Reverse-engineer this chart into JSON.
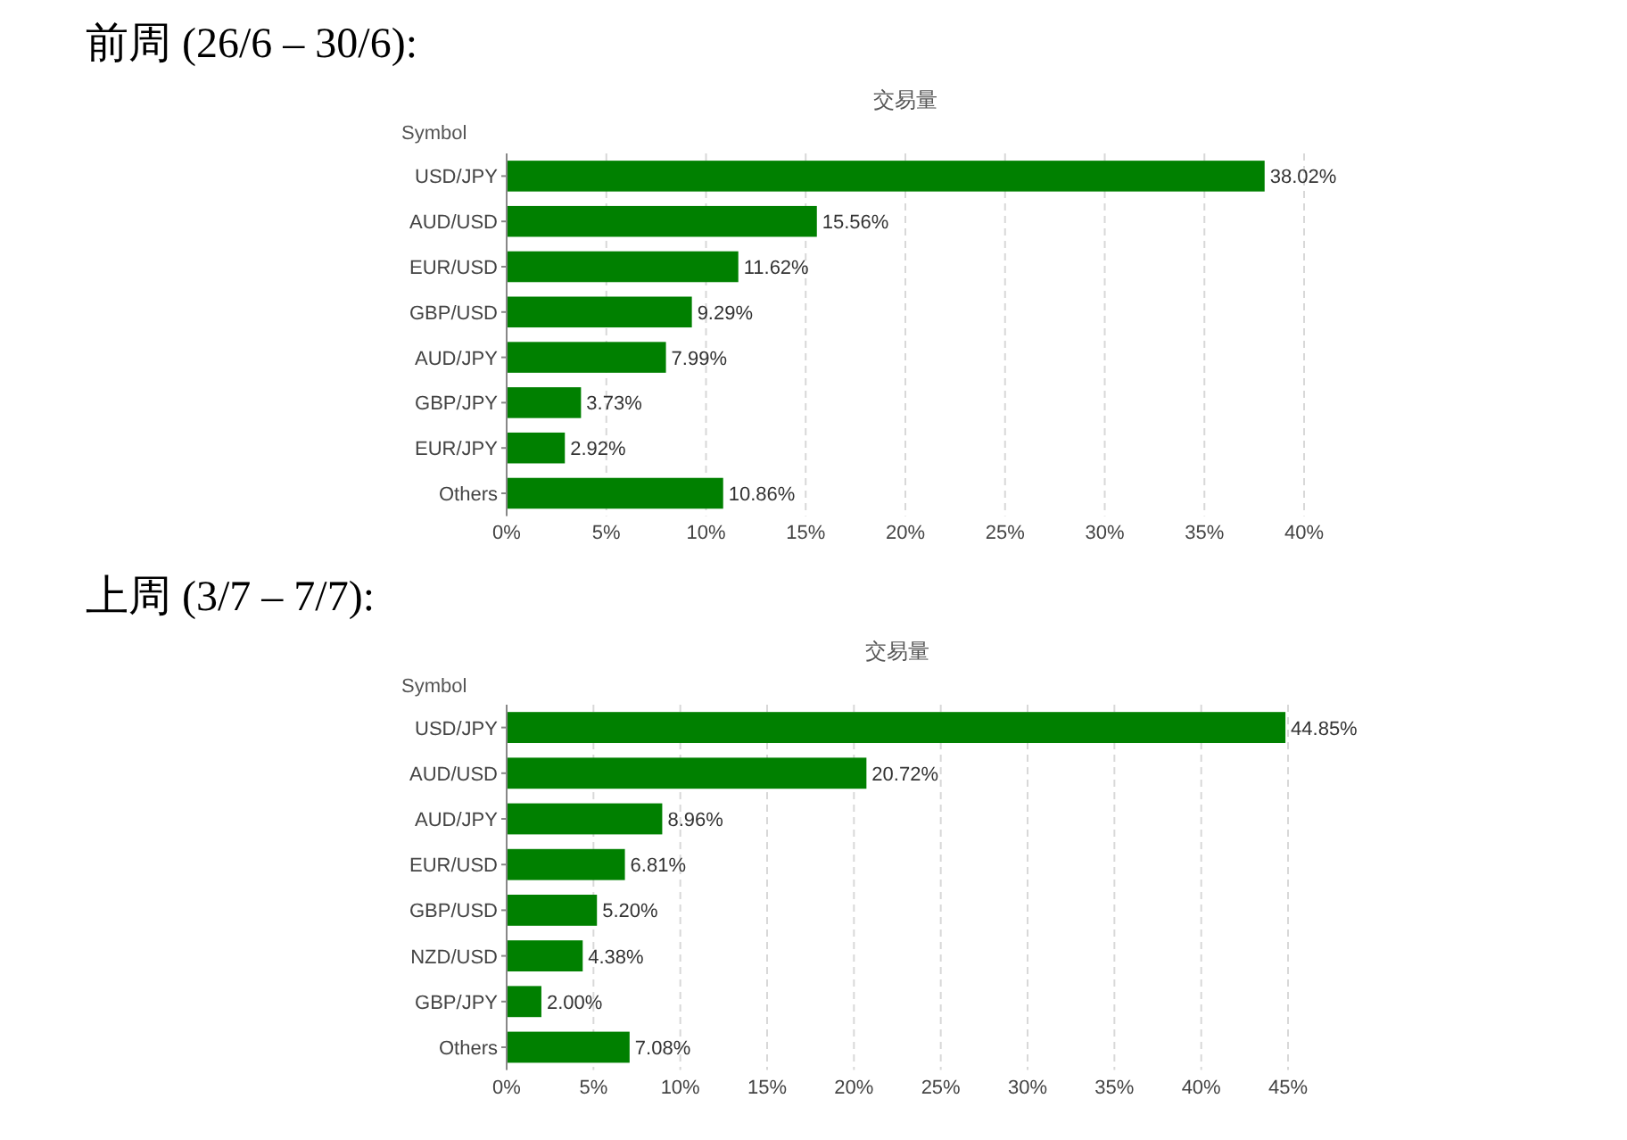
{
  "chart_data": [
    {
      "type": "bar",
      "orientation": "horizontal",
      "title": "前周 (26/6 – 30/6):",
      "subtitle": "交易量",
      "ylabel": "Symbol",
      "categories": [
        "USD/JPY",
        "AUD/USD",
        "EUR/USD",
        "GBP/USD",
        "AUD/JPY",
        "GBP/JPY",
        "EUR/JPY",
        "Others"
      ],
      "values": [
        38.02,
        15.56,
        11.62,
        9.29,
        7.99,
        3.73,
        2.92,
        10.86
      ],
      "value_labels": [
        "38.02%",
        "15.56%",
        "11.62%",
        "9.29%",
        "7.99%",
        "3.73%",
        "2.92%",
        "10.86%"
      ],
      "color": "#008000",
      "xlim": [
        0,
        40
      ],
      "xticks": [
        {
          "value": 0,
          "label": "0%"
        },
        {
          "value": 5,
          "label": "5%"
        },
        {
          "value": 10,
          "label": "10%"
        },
        {
          "value": 15,
          "label": "15%"
        },
        {
          "value": 20,
          "label": "20%"
        },
        {
          "value": 25,
          "label": "25%"
        },
        {
          "value": 30,
          "label": "30%"
        },
        {
          "value": 35,
          "label": "35%"
        },
        {
          "value": 40,
          "label": "40%"
        }
      ],
      "grid": "x"
    },
    {
      "type": "bar",
      "orientation": "horizontal",
      "title": "上周 (3/7 – 7/7):",
      "subtitle": "交易量",
      "ylabel": "Symbol",
      "categories": [
        "USD/JPY",
        "AUD/USD",
        "AUD/JPY",
        "EUR/USD",
        "GBP/USD",
        "NZD/USD",
        "GBP/JPY",
        "Others"
      ],
      "values": [
        44.85,
        20.72,
        8.96,
        6.81,
        5.2,
        4.38,
        2.0,
        7.08
      ],
      "value_labels": [
        "44.85%",
        "20.72%",
        "8.96%",
        "6.81%",
        "5.20%",
        "4.38%",
        "2.00%",
        "7.08%"
      ],
      "color": "#008000",
      "xlim": [
        0,
        45
      ],
      "xticks": [
        {
          "value": 0,
          "label": "0%"
        },
        {
          "value": 5,
          "label": "5%"
        },
        {
          "value": 10,
          "label": "10%"
        },
        {
          "value": 15,
          "label": "15%"
        },
        {
          "value": 20,
          "label": "20%"
        },
        {
          "value": 25,
          "label": "25%"
        },
        {
          "value": 30,
          "label": "30%"
        },
        {
          "value": 35,
          "label": "35%"
        },
        {
          "value": 40,
          "label": "40%"
        },
        {
          "value": 45,
          "label": "45%"
        }
      ],
      "grid": "x"
    }
  ]
}
